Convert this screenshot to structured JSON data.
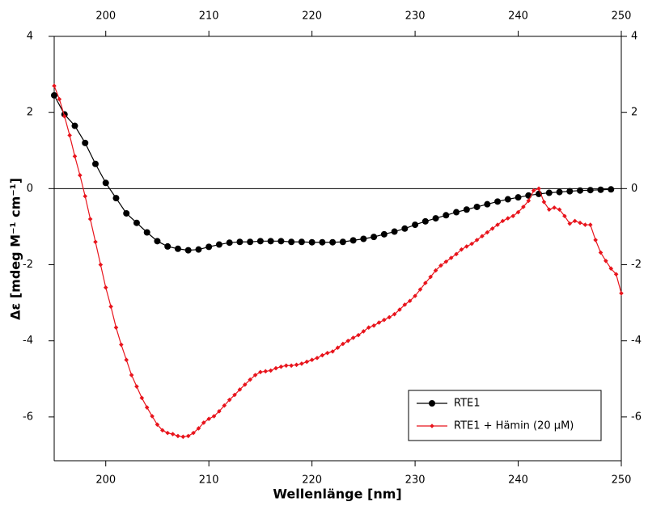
{
  "chart_data": {
    "type": "line",
    "x_label": "Wellenlänge [nm]",
    "y_label": "Δε [mdeg M⁻¹ cm⁻¹]",
    "xlim": [
      195,
      250
    ],
    "xticks": [
      200,
      210,
      220,
      230,
      240,
      250
    ],
    "ylim": [
      -7.15,
      4
    ],
    "yticks": [
      -6,
      -4,
      -2,
      0,
      2,
      4
    ],
    "zero_line": true,
    "legend": "lower right",
    "series": [
      {
        "name": "RTE1",
        "color": "#000000",
        "marker": "circle",
        "x": [
          195,
          196,
          197,
          198,
          199,
          200,
          201,
          202,
          203,
          204,
          205,
          206,
          207,
          208,
          209,
          210,
          211,
          212,
          213,
          214,
          215,
          216,
          217,
          218,
          219,
          220,
          221,
          222,
          223,
          224,
          225,
          226,
          227,
          228,
          229,
          230,
          231,
          232,
          233,
          234,
          235,
          236,
          237,
          238,
          239,
          240,
          241,
          242,
          243,
          244,
          245,
          246,
          247,
          248,
          249
        ],
        "values": [
          2.45,
          1.95,
          1.65,
          1.2,
          0.65,
          0.15,
          -0.25,
          -0.65,
          -0.9,
          -1.15,
          -1.38,
          -1.52,
          -1.58,
          -1.62,
          -1.6,
          -1.53,
          -1.47,
          -1.42,
          -1.4,
          -1.4,
          -1.38,
          -1.38,
          -1.38,
          -1.4,
          -1.4,
          -1.41,
          -1.41,
          -1.41,
          -1.4,
          -1.36,
          -1.32,
          -1.27,
          -1.2,
          -1.13,
          -1.05,
          -0.95,
          -0.86,
          -0.78,
          -0.7,
          -0.62,
          -0.55,
          -0.48,
          -0.41,
          -0.34,
          -0.28,
          -0.23,
          -0.18,
          -0.14,
          -0.11,
          -0.09,
          -0.07,
          -0.05,
          -0.04,
          -0.03,
          -0.02
        ]
      },
      {
        "name": "RTE1 + Hämin (20 µM)",
        "color": "#e8141c",
        "marker": "diamond",
        "x": [
          195,
          195.5,
          196,
          196.5,
          197,
          197.5,
          198,
          198.5,
          199,
          199.5,
          200,
          200.5,
          201,
          201.5,
          202,
          202.5,
          203,
          203.5,
          204,
          204.5,
          205,
          205.5,
          206,
          206.5,
          207,
          207.5,
          208,
          208.5,
          209,
          209.5,
          210,
          210.5,
          211,
          211.5,
          212,
          212.5,
          213,
          213.5,
          214,
          214.5,
          215,
          215.5,
          216,
          216.5,
          217,
          217.5,
          218,
          218.5,
          219,
          219.5,
          220,
          220.5,
          221,
          221.5,
          222,
          222.5,
          223,
          223.5,
          224,
          224.5,
          225,
          225.5,
          226,
          226.5,
          227,
          227.5,
          228,
          228.5,
          229,
          229.5,
          230,
          230.5,
          231,
          231.5,
          232,
          232.5,
          233,
          233.5,
          234,
          234.5,
          235,
          235.5,
          236,
          236.5,
          237,
          237.5,
          238,
          238.5,
          239,
          239.5,
          240,
          240.5,
          241,
          241.5,
          242,
          242.5,
          243,
          243.5,
          244,
          244.5,
          245,
          245.5,
          246,
          246.5,
          247,
          247.5,
          248,
          248.5,
          249,
          249.5,
          250
        ],
        "values": [
          2.7,
          2.35,
          1.9,
          1.4,
          0.85,
          0.35,
          -0.2,
          -0.8,
          -1.4,
          -2.0,
          -2.6,
          -3.1,
          -3.65,
          -4.1,
          -4.5,
          -4.9,
          -5.2,
          -5.5,
          -5.75,
          -5.98,
          -6.2,
          -6.35,
          -6.42,
          -6.45,
          -6.5,
          -6.52,
          -6.5,
          -6.42,
          -6.3,
          -6.15,
          -6.05,
          -5.98,
          -5.85,
          -5.7,
          -5.55,
          -5.42,
          -5.28,
          -5.15,
          -5.02,
          -4.9,
          -4.82,
          -4.8,
          -4.78,
          -4.72,
          -4.68,
          -4.65,
          -4.65,
          -4.63,
          -4.6,
          -4.55,
          -4.5,
          -4.45,
          -4.38,
          -4.32,
          -4.28,
          -4.18,
          -4.08,
          -4.0,
          -3.92,
          -3.85,
          -3.75,
          -3.65,
          -3.6,
          -3.52,
          -3.45,
          -3.38,
          -3.3,
          -3.18,
          -3.05,
          -2.95,
          -2.82,
          -2.65,
          -2.48,
          -2.32,
          -2.15,
          -2.02,
          -1.92,
          -1.82,
          -1.72,
          -1.6,
          -1.52,
          -1.45,
          -1.35,
          -1.25,
          -1.15,
          -1.05,
          -0.95,
          -0.85,
          -0.78,
          -0.72,
          -0.62,
          -0.48,
          -0.32,
          -0.05,
          0.0,
          -0.35,
          -0.55,
          -0.5,
          -0.55,
          -0.72,
          -0.92,
          -0.85,
          -0.9,
          -0.95,
          -0.95,
          -1.35,
          -1.68,
          -1.9,
          -2.1,
          -2.25,
          -2.75
        ]
      }
    ]
  }
}
